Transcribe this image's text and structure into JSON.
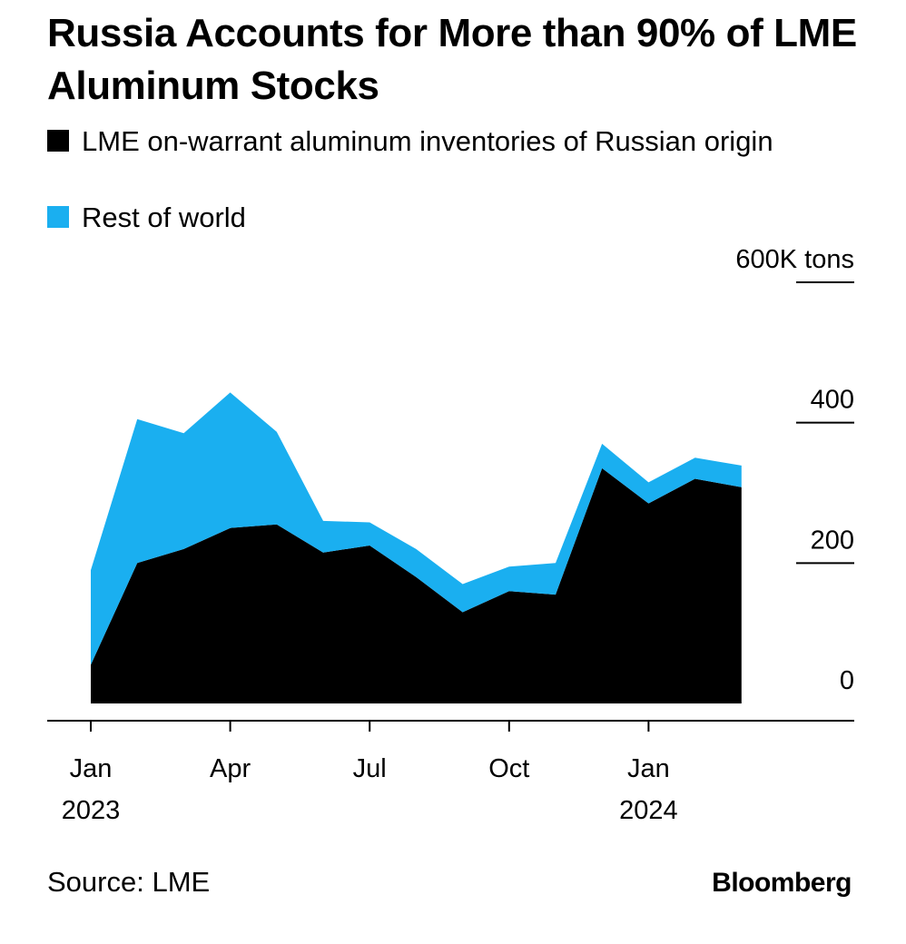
{
  "chart_data": {
    "type": "area",
    "stacked": true,
    "title": "Russia Accounts for More than 90% of LME Aluminum Stocks",
    "legend": [
      {
        "name": "LME on-warrant aluminum inventories of Russian origin",
        "color": "#000000"
      },
      {
        "name": "Rest of world",
        "color": "#1AAFF0"
      }
    ],
    "x": [
      "2023-01",
      "2023-02",
      "2023-03",
      "2023-04",
      "2023-05",
      "2023-06",
      "2023-07",
      "2023-08",
      "2023-09",
      "2023-10",
      "2023-11",
      "2023-12",
      "2024-01",
      "2024-02",
      "2024-03"
    ],
    "series": [
      {
        "name": "LME on-warrant aluminum inventories of Russian origin",
        "color": "#000000",
        "values": [
          55,
          200,
          220,
          250,
          255,
          215,
          225,
          180,
          130,
          160,
          155,
          335,
          285,
          320,
          308
        ]
      },
      {
        "name": "Rest of world",
        "color": "#1AAFF0",
        "values": [
          135,
          205,
          165,
          193,
          132,
          45,
          33,
          40,
          40,
          35,
          45,
          35,
          30,
          30,
          31
        ]
      }
    ],
    "xlabel": "",
    "ylabel": "",
    "ylim": [
      0,
      600
    ],
    "y_ticks": [
      {
        "value": 0,
        "label": "0"
      },
      {
        "value": 200,
        "label": "200"
      },
      {
        "value": 400,
        "label": "400"
      },
      {
        "value": 600,
        "label": "600K tons"
      }
    ],
    "x_ticks": [
      {
        "value": "2023-01",
        "label": "Jan",
        "year": "2023"
      },
      {
        "value": "2023-04",
        "label": "Apr",
        "year": ""
      },
      {
        "value": "2023-07",
        "label": "Jul",
        "year": ""
      },
      {
        "value": "2023-10",
        "label": "Oct",
        "year": ""
      },
      {
        "value": "2024-01",
        "label": "Jan",
        "year": "2024"
      }
    ],
    "grid": false,
    "y_axis_position": "right"
  },
  "source": "Source: LME",
  "brand": "Bloomberg"
}
